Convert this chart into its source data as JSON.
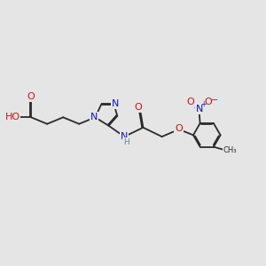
{
  "bg_color": "#e5e5e5",
  "bond_color": "#2a2a2a",
  "bond_width": 1.3,
  "dbo": 0.04,
  "atom_colors": {
    "H": "#5a9090",
    "N": "#1010cc",
    "O": "#cc1010",
    "C": "#2a2a2a"
  },
  "fs": 8.0,
  "fs_s": 6.5
}
